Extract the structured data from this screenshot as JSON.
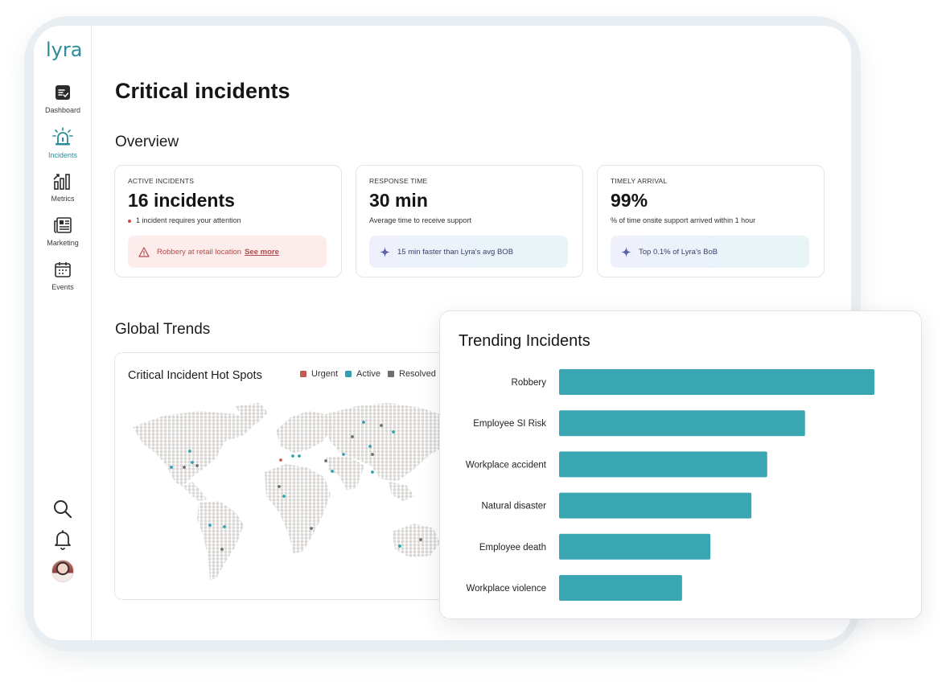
{
  "app": {
    "logo": "lyra"
  },
  "sidebar": {
    "items": [
      {
        "label": "Dashboard",
        "icon": "checklist-icon"
      },
      {
        "label": "Incidents",
        "icon": "siren-icon",
        "active": true
      },
      {
        "label": "Metrics",
        "icon": "bar-chart-icon"
      },
      {
        "label": "Marketing",
        "icon": "newspaper-icon"
      },
      {
        "label": "Events",
        "icon": "calendar-icon"
      }
    ],
    "bottom": [
      "search-icon",
      "bell-icon",
      "avatar"
    ]
  },
  "page": {
    "title": "Critical incidents"
  },
  "overview": {
    "title": "Overview",
    "cards": [
      {
        "label": "ACTIVE INCIDENTS",
        "value": "16 incidents",
        "sub": "1 incident requires your attention",
        "pill": "Robbery at retail location",
        "pill_link": "See more"
      },
      {
        "label": "RESPONSE TIME",
        "value": "30 min",
        "sub": "Average time to receive support",
        "pill": "15 min faster than Lyra's avg BOB"
      },
      {
        "label": "TIMELY ARRIVAL",
        "value": "99%",
        "sub": "% of time onsite support arrived within 1 hour",
        "pill": "Top 0.1% of Lyra's BoB"
      }
    ]
  },
  "global_trends": {
    "title": "Global Trends",
    "map_title": "Critical Incident Hot Spots",
    "legend": [
      {
        "label": "Urgent",
        "color": "#c45a55"
      },
      {
        "label": "Active",
        "color": "#2ea3b0"
      },
      {
        "label": "Resolved",
        "color": "#6e6e6e"
      }
    ]
  },
  "colors": {
    "accent": "#2b8c99",
    "bar": "#3aa6b2",
    "alert_bg": "#fdecec"
  },
  "chart_data": {
    "type": "bar",
    "orientation": "horizontal",
    "title": "Trending Incidents",
    "categories": [
      "Robbery",
      "Employee SI Risk",
      "Workplace accident",
      "Natural disaster",
      "Employee death",
      "Workplace violence"
    ],
    "values": [
      100,
      78,
      66,
      61,
      48,
      39
    ],
    "xlabel": "",
    "ylabel": "",
    "xlim": [
      0,
      100
    ],
    "grid": false,
    "legend": "none"
  }
}
